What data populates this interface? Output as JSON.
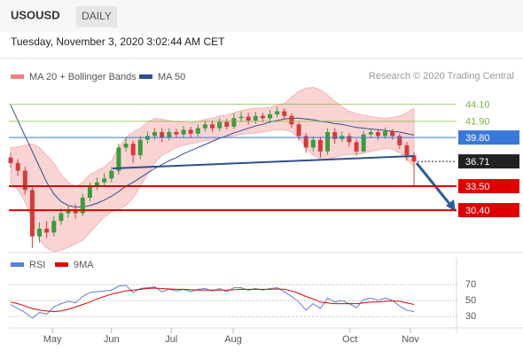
{
  "chart_data": [
    {
      "type": "candlestick",
      "title": "USOUSD",
      "timeframe": "DAILY",
      "subtitle": "Tuesday, November 3, 2020 3:02:44 AM CET",
      "source": "Research © 2020 Trading Central",
      "up_color": "#3e9a3e",
      "down_color": "#d23b3b",
      "xlim": [
        -0.25,
        61.9
      ],
      "ylim": [
        24.9,
        46.7
      ],
      "open": [
        37.2,
        36.5,
        35.5,
        33,
        27,
        28,
        27.5,
        29,
        30,
        30.5,
        30,
        32,
        33.5,
        34,
        34.5,
        35.5,
        38.5,
        39,
        37.5,
        39.5,
        40,
        40.5,
        39.8,
        40.5,
        40.2,
        40.8,
        40.3,
        41,
        41.5,
        41,
        41.8,
        41.2,
        42.3,
        42.5,
        42,
        42.6,
        42.3,
        42.8,
        43.2,
        42.6,
        41.5,
        40,
        38.5,
        39.5,
        38,
        40.5,
        39.6,
        40,
        39.2,
        38,
        40.2,
        40.5,
        40,
        40.6,
        40,
        38.8,
        37.5
      ],
      "high": [
        37.8,
        37.0,
        36.0,
        33.5,
        28.8,
        29.0,
        29.6,
        30.6,
        31.0,
        31.2,
        32.5,
        34.0,
        34.6,
        35.2,
        36.0,
        39.0,
        39.8,
        39.4,
        40.0,
        40.6,
        41.0,
        41.0,
        41.0,
        40.9,
        41.3,
        41.2,
        41.5,
        42.0,
        42.0,
        42.3,
        42.2,
        43.0,
        43.1,
        43.0,
        43.1,
        43.0,
        43.4,
        43.8,
        43.6,
        42.9,
        41.8,
        40.4,
        40.0,
        39.9,
        41.0,
        41.0,
        40.6,
        40.4,
        39.6,
        40.7,
        41.0,
        40.9,
        41.1,
        40.9,
        40.3,
        39.2,
        37.9
      ],
      "low": [
        35.9,
        34.8,
        32.4,
        25.5,
        26.2,
        26.8,
        27.0,
        28.5,
        29.4,
        29.3,
        29.6,
        31.5,
        33.0,
        33.4,
        34.0,
        35.0,
        38.0,
        36.5,
        37.0,
        39.0,
        39.5,
        39.2,
        39.4,
        39.7,
        39.8,
        39.8,
        39.9,
        40.6,
        40.5,
        40.6,
        40.8,
        40.9,
        41.8,
        41.5,
        41.6,
        41.8,
        41.9,
        42.4,
        42.1,
        41.0,
        39.4,
        37.8,
        38.0,
        37.2,
        37.6,
        39.0,
        39.2,
        38.6,
        37.5,
        37.8,
        39.8,
        39.5,
        39.6,
        39.5,
        38.3,
        36.8,
        33.6
      ],
      "close": [
        36.5,
        35.5,
        33,
        27,
        28,
        27.5,
        29,
        30,
        30.5,
        30,
        32,
        33.5,
        34,
        34.5,
        35.5,
        38.5,
        39,
        37.5,
        39.5,
        40,
        40.5,
        39.8,
        40.5,
        40.2,
        40.8,
        40.3,
        41,
        41.5,
        41,
        41.8,
        41.2,
        42.3,
        42.5,
        42,
        42.6,
        42.3,
        42.8,
        43.2,
        42.6,
        41.5,
        40,
        38.5,
        39.5,
        38,
        40.5,
        39.6,
        40,
        39.2,
        38,
        40.2,
        40.5,
        40,
        40.6,
        40,
        38.8,
        37.5,
        36.7
      ],
      "series": [
        {
          "name": "MA 20 + Bollinger Bands",
          "color": "#f08080",
          "upper": [
            38.5,
            38.6,
            38.8,
            39,
            38.5,
            37.5,
            36.5,
            35,
            34,
            33.5,
            34,
            35,
            35.5,
            36,
            36.8,
            38.5,
            39.8,
            40.5,
            41,
            41.8,
            42.3,
            42.2,
            42,
            41.8,
            41.8,
            41.7,
            41.9,
            42.2,
            42.3,
            42.6,
            42.7,
            43,
            43.3,
            43.5,
            43.6,
            43.6,
            43.7,
            44,
            44.2,
            45,
            45.8,
            46.2,
            46.3,
            46,
            45.3,
            44.5,
            43.8,
            43.2,
            42.9,
            42.7,
            42.5,
            42.4,
            42.3,
            42.4,
            42.6,
            43,
            43.6
          ],
          "lower": [
            34,
            33,
            31.5,
            29,
            26.5,
            25.5,
            25,
            25.2,
            25.6,
            26,
            26.5,
            27.5,
            28.5,
            29.5,
            30.2,
            30.5,
            31,
            32,
            33.5,
            35,
            36.5,
            37.5,
            38,
            38.5,
            38.8,
            39,
            39.2,
            39.4,
            39.5,
            39.7,
            39.8,
            40,
            40.2,
            40.3,
            40.4,
            40.5,
            40.7,
            40.8,
            40.8,
            40.5,
            39.8,
            38.5,
            37.5,
            37,
            37,
            37.2,
            37.5,
            37.6,
            37.6,
            37.8,
            38,
            38.2,
            38.4,
            38.3,
            37.8,
            37,
            36
          ]
        },
        {
          "name": "MA 50",
          "color": "#2e4f8f",
          "values": [
            44,
            42,
            40,
            38,
            36,
            34,
            32.5,
            31.5,
            31,
            30.8,
            30.8,
            31,
            31.3,
            31.7,
            32.2,
            32.8,
            33.5,
            34,
            34.6,
            35.2,
            35.8,
            36.3,
            36.8,
            37.2,
            37.7,
            38.1,
            38.5,
            38.9,
            39.3,
            39.7,
            40,
            40.4,
            40.7,
            41,
            41.3,
            41.5,
            41.8,
            42,
            42.2,
            42.3,
            42.3,
            42.2,
            42.1,
            41.9,
            41.8,
            41.6,
            41.5,
            41.3,
            41.1,
            41,
            40.9,
            40.8,
            40.7,
            40.6,
            40.5,
            40.3,
            40.1
          ]
        }
      ],
      "levels": [
        {
          "value": 44.1,
          "label": "44.10",
          "color": "#7cb342",
          "style": "text"
        },
        {
          "value": 41.9,
          "label": "41.90",
          "color": "#7cb342",
          "style": "text"
        },
        {
          "value": 39.8,
          "label": "39.80",
          "color": "#3a78d8",
          "style": "box"
        },
        {
          "value": 36.71,
          "label": "36.71",
          "color": "#222222",
          "style": "box",
          "dashed": true
        },
        {
          "value": 33.5,
          "label": "33.50",
          "color": "#e00000",
          "style": "box"
        },
        {
          "value": 30.4,
          "label": "30.40",
          "color": "#e00000",
          "style": "box"
        }
      ]
    },
    {
      "type": "line",
      "xlim": [
        -0.25,
        61.9
      ],
      "ylim": [
        15.6,
        104.4
      ],
      "yticks": [
        70,
        50,
        30
      ],
      "xticks": [
        {
          "value": 5.8,
          "label": "May"
        },
        {
          "value": 14,
          "label": "Jun"
        },
        {
          "value": 22.3,
          "label": "Jul"
        },
        {
          "value": 30.9,
          "label": "Aug"
        },
        {
          "value": 47.1,
          "label": "Oct"
        },
        {
          "value": 55.5,
          "label": "Nov"
        }
      ],
      "series": [
        {
          "name": "RSI",
          "color": "#5b7fd4",
          "values": [
            45,
            40,
            35,
            28,
            35,
            33,
            42,
            46,
            49,
            47,
            55,
            60,
            61,
            62,
            63,
            68,
            69,
            60,
            65,
            66,
            67,
            61,
            64,
            62,
            64,
            61,
            64,
            65,
            62,
            65,
            61,
            66,
            66,
            63,
            65,
            63,
            65,
            66,
            61,
            55,
            48,
            38,
            46,
            40,
            53,
            48,
            50,
            46,
            41,
            51,
            53,
            50,
            53,
            50,
            43,
            38,
            36
          ]
        },
        {
          "name": "9MA",
          "color": "#e00000",
          "values": [
            48,
            46,
            43,
            40,
            38,
            37,
            36,
            37,
            39,
            42,
            45,
            48,
            52,
            55,
            58,
            60,
            62,
            63,
            64,
            65,
            65.5,
            65,
            64.5,
            64,
            64,
            63.5,
            63,
            63,
            63,
            63,
            63,
            63.5,
            64,
            64,
            64,
            64,
            64,
            64.5,
            64,
            62,
            59,
            55,
            52,
            48,
            47,
            46,
            46,
            46,
            46,
            47,
            48,
            48,
            49,
            49.5,
            49,
            47,
            45
          ]
        }
      ]
    }
  ]
}
